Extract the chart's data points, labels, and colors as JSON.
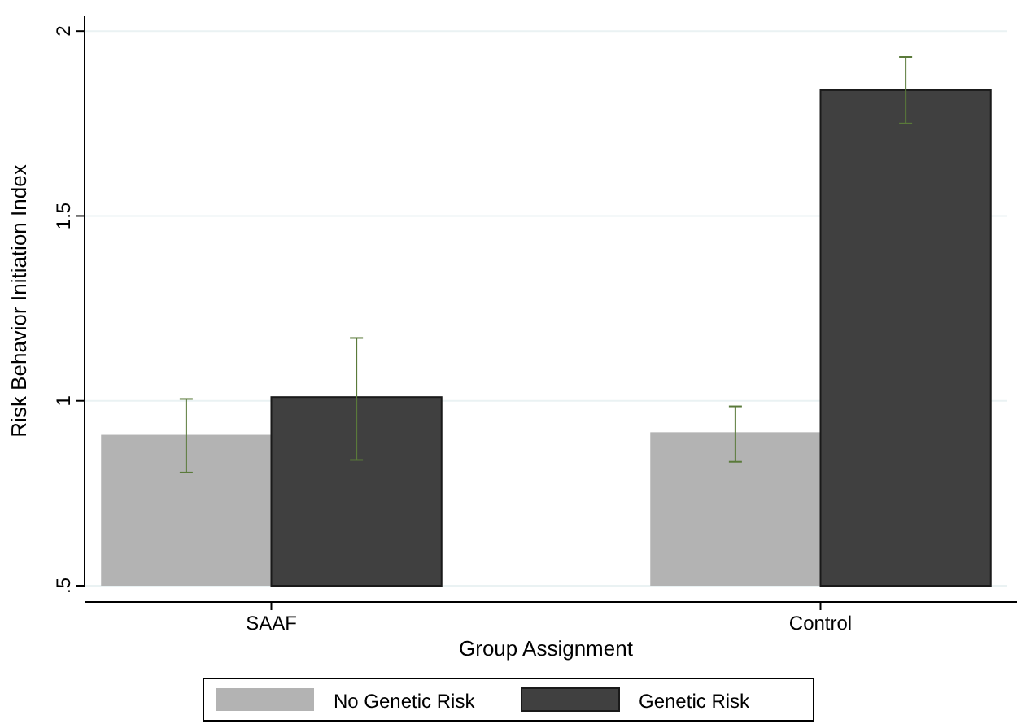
{
  "chart_data": {
    "type": "bar",
    "xlabel": "Group Assignment",
    "ylabel": "Risk Behavior Initiation Index",
    "categories": [
      "SAAF",
      "Control"
    ],
    "series": [
      {
        "name": "No Genetic Risk",
        "color": "#b3b3b3",
        "values": [
          0.908,
          0.915
        ],
        "errors": [
          [
            0.806,
            1.005
          ],
          [
            0.835,
            0.985
          ]
        ]
      },
      {
        "name": "Genetic Risk",
        "color": "#404040",
        "values": [
          1.01,
          1.84
        ],
        "errors": [
          [
            0.84,
            1.17
          ],
          [
            1.75,
            1.93
          ]
        ]
      }
    ],
    "ylim": [
      0.5,
      2.04
    ],
    "yticks": [
      {
        "value": 0.5,
        "label": ".5"
      },
      1,
      1.5,
      2
    ],
    "grid": "y",
    "legend": "bottom"
  }
}
